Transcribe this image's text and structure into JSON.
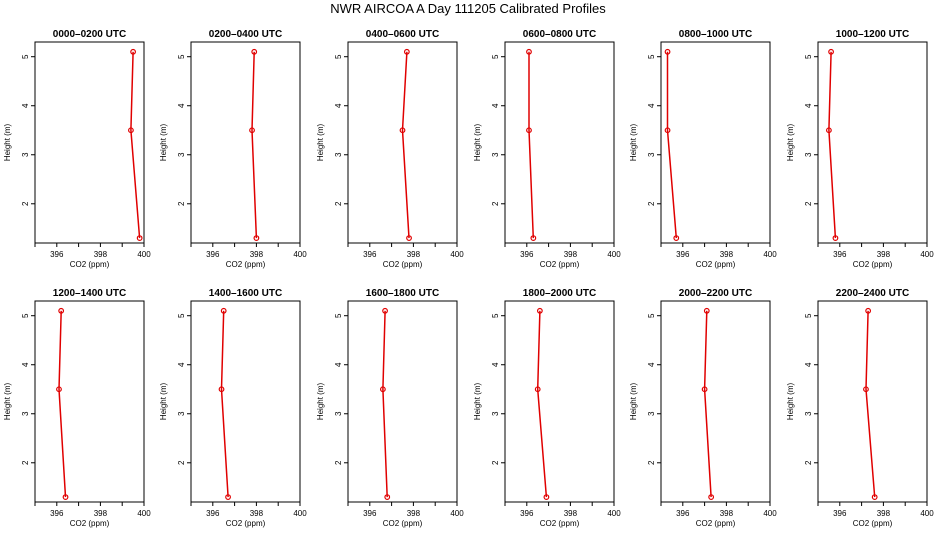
{
  "title": "NWR AIRCOA A  Day 111205  Calibrated Profiles",
  "colors": {
    "profile": "#e00000",
    "axis": "#000000"
  },
  "chart_data": [
    {
      "type": "line",
      "title": "0000–0200 UTC",
      "xlabel": "CO2 (ppm)",
      "ylabel": "Height (m)",
      "xlim": [
        395,
        400
      ],
      "ylim": [
        1.2,
        5.3
      ],
      "xticks": [
        "396",
        "398",
        "400"
      ],
      "yticks": [
        "2",
        "3",
        "4",
        "5"
      ],
      "grid": false,
      "series": [
        {
          "points": [
            {
              "x": 399.8,
              "y": 1.3
            },
            {
              "x": 399.4,
              "y": 3.5
            },
            {
              "x": 399.5,
              "y": 5.1
            }
          ]
        }
      ]
    },
    {
      "type": "line",
      "title": "0200–0400 UTC",
      "xlabel": "CO2 (ppm)",
      "ylabel": "Height (m)",
      "xlim": [
        395,
        400
      ],
      "ylim": [
        1.2,
        5.3
      ],
      "xticks": [
        "396",
        "398",
        "400"
      ],
      "yticks": [
        "2",
        "3",
        "4",
        "5"
      ],
      "grid": false,
      "series": [
        {
          "points": [
            {
              "x": 398.0,
              "y": 1.3
            },
            {
              "x": 397.8,
              "y": 3.5
            },
            {
              "x": 397.9,
              "y": 5.1
            }
          ]
        }
      ]
    },
    {
      "type": "line",
      "title": "0400–0600 UTC",
      "xlabel": "CO2 (ppm)",
      "ylabel": "Height (m)",
      "xlim": [
        395,
        400
      ],
      "ylim": [
        1.2,
        5.3
      ],
      "xticks": [
        "396",
        "398",
        "400"
      ],
      "yticks": [
        "2",
        "3",
        "4",
        "5"
      ],
      "grid": false,
      "series": [
        {
          "points": [
            {
              "x": 397.8,
              "y": 1.3
            },
            {
              "x": 397.5,
              "y": 3.5
            },
            {
              "x": 397.7,
              "y": 5.1
            }
          ]
        }
      ]
    },
    {
      "type": "line",
      "title": "0600–0800 UTC",
      "xlabel": "CO2 (ppm)",
      "ylabel": "Height (m)",
      "xlim": [
        395,
        400
      ],
      "ylim": [
        1.2,
        5.3
      ],
      "xticks": [
        "396",
        "398",
        "400"
      ],
      "yticks": [
        "2",
        "3",
        "4",
        "5"
      ],
      "grid": false,
      "series": [
        {
          "points": [
            {
              "x": 396.3,
              "y": 1.3
            },
            {
              "x": 396.1,
              "y": 3.5
            },
            {
              "x": 396.1,
              "y": 5.1
            }
          ]
        }
      ]
    },
    {
      "type": "line",
      "title": "0800–1000 UTC",
      "xlabel": "CO2 (ppm)",
      "ylabel": "Height (m)",
      "xlim": [
        395,
        400
      ],
      "ylim": [
        1.2,
        5.3
      ],
      "xticks": [
        "396",
        "398",
        "400"
      ],
      "yticks": [
        "2",
        "3",
        "4",
        "5"
      ],
      "grid": false,
      "series": [
        {
          "points": [
            {
              "x": 395.7,
              "y": 1.3
            },
            {
              "x": 395.3,
              "y": 3.5
            },
            {
              "x": 395.3,
              "y": 5.1
            }
          ]
        }
      ]
    },
    {
      "type": "line",
      "title": "1000–1200 UTC",
      "xlabel": "CO2 (ppm)",
      "ylabel": "Height (m)",
      "xlim": [
        395,
        400
      ],
      "ylim": [
        1.2,
        5.3
      ],
      "xticks": [
        "396",
        "398",
        "400"
      ],
      "yticks": [
        "2",
        "3",
        "4",
        "5"
      ],
      "grid": false,
      "series": [
        {
          "points": [
            {
              "x": 395.8,
              "y": 1.3
            },
            {
              "x": 395.5,
              "y": 3.5
            },
            {
              "x": 395.6,
              "y": 5.1
            }
          ]
        }
      ]
    },
    {
      "type": "line",
      "title": "1200–1400 UTC",
      "xlabel": "CO2 (ppm)",
      "ylabel": "Height (m)",
      "xlim": [
        395,
        400
      ],
      "ylim": [
        1.2,
        5.3
      ],
      "xticks": [
        "396",
        "398",
        "400"
      ],
      "yticks": [
        "2",
        "3",
        "4",
        "5"
      ],
      "grid": false,
      "series": [
        {
          "points": [
            {
              "x": 396.4,
              "y": 1.3
            },
            {
              "x": 396.1,
              "y": 3.5
            },
            {
              "x": 396.2,
              "y": 5.1
            }
          ]
        }
      ]
    },
    {
      "type": "line",
      "title": "1400–1600 UTC",
      "xlabel": "CO2 (ppm)",
      "ylabel": "Height (m)",
      "xlim": [
        395,
        400
      ],
      "ylim": [
        1.2,
        5.3
      ],
      "xticks": [
        "396",
        "398",
        "400"
      ],
      "yticks": [
        "2",
        "3",
        "4",
        "5"
      ],
      "grid": false,
      "series": [
        {
          "points": [
            {
              "x": 396.7,
              "y": 1.3
            },
            {
              "x": 396.4,
              "y": 3.5
            },
            {
              "x": 396.5,
              "y": 5.1
            }
          ]
        }
      ]
    },
    {
      "type": "line",
      "title": "1600–1800 UTC",
      "xlabel": "CO2 (ppm)",
      "ylabel": "Height (m)",
      "xlim": [
        395,
        400
      ],
      "ylim": [
        1.2,
        5.3
      ],
      "xticks": [
        "396",
        "398",
        "400"
      ],
      "yticks": [
        "2",
        "3",
        "4",
        "5"
      ],
      "grid": false,
      "series": [
        {
          "points": [
            {
              "x": 396.8,
              "y": 1.3
            },
            {
              "x": 396.6,
              "y": 3.5
            },
            {
              "x": 396.7,
              "y": 5.1
            }
          ]
        }
      ]
    },
    {
      "type": "line",
      "title": "1800–2000 UTC",
      "xlabel": "CO2 (ppm)",
      "ylabel": "Height (m)",
      "xlim": [
        395,
        400
      ],
      "ylim": [
        1.2,
        5.3
      ],
      "xticks": [
        "396",
        "398",
        "400"
      ],
      "yticks": [
        "2",
        "3",
        "4",
        "5"
      ],
      "grid": false,
      "series": [
        {
          "points": [
            {
              "x": 396.9,
              "y": 1.3
            },
            {
              "x": 396.5,
              "y": 3.5
            },
            {
              "x": 396.6,
              "y": 5.1
            }
          ]
        }
      ]
    },
    {
      "type": "line",
      "title": "2000–2200 UTC",
      "xlabel": "CO2 (ppm)",
      "ylabel": "Height (m)",
      "xlim": [
        395,
        400
      ],
      "ylim": [
        1.2,
        5.3
      ],
      "xticks": [
        "396",
        "398",
        "400"
      ],
      "yticks": [
        "2",
        "3",
        "4",
        "5"
      ],
      "grid": false,
      "series": [
        {
          "points": [
            {
              "x": 397.3,
              "y": 1.3
            },
            {
              "x": 397.0,
              "y": 3.5
            },
            {
              "x": 397.1,
              "y": 5.1
            }
          ]
        }
      ]
    },
    {
      "type": "line",
      "title": "2200–2400 UTC",
      "xlabel": "CO2 (ppm)",
      "ylabel": "Height (m)",
      "xlim": [
        395,
        400
      ],
      "ylim": [
        1.2,
        5.3
      ],
      "xticks": [
        "396",
        "398",
        "400"
      ],
      "yticks": [
        "2",
        "3",
        "4",
        "5"
      ],
      "grid": false,
      "series": [
        {
          "points": [
            {
              "x": 397.6,
              "y": 1.3
            },
            {
              "x": 397.2,
              "y": 3.5
            },
            {
              "x": 397.3,
              "y": 5.1
            }
          ]
        }
      ]
    }
  ]
}
